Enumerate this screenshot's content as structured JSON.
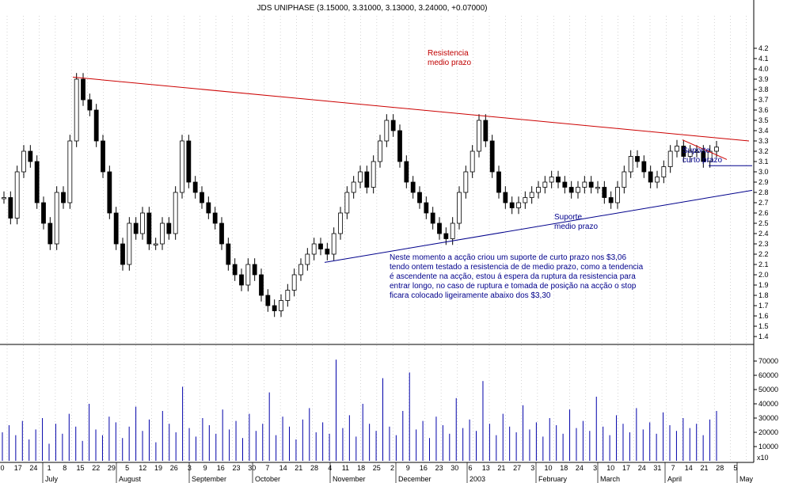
{
  "chart_data": [
    {
      "type": "candlestick",
      "title": "JDS UNIPHASE (3.15000, 3.31000, 3.13000, 3.24000, +0.07000)",
      "yticks": [
        "1.4",
        "1.5",
        "1.6",
        "1.7",
        "1.8",
        "1.9",
        "2.0",
        "2.1",
        "2.2",
        "2.3",
        "2.4",
        "2.5",
        "2.6",
        "2.7",
        "2.8",
        "2.9",
        "3.0",
        "3.1",
        "3.2",
        "3.3",
        "3.4",
        "3.5",
        "3.6",
        "3.7",
        "3.8",
        "3.9",
        "4.0",
        "4.1",
        "4.2"
      ],
      "ylim": [
        1.35,
        4.25
      ],
      "grid": "vertical dotted",
      "approx_closes": [
        2.75,
        2.55,
        3.0,
        3.2,
        3.1,
        2.7,
        2.5,
        2.3,
        2.8,
        2.7,
        3.3,
        3.9,
        3.7,
        3.6,
        3.3,
        3.0,
        2.6,
        2.3,
        2.1,
        2.5,
        2.4,
        2.6,
        2.3,
        2.3,
        2.5,
        2.4,
        2.8,
        3.3,
        2.9,
        2.8,
        2.7,
        2.6,
        2.5,
        2.3,
        2.1,
        2.0,
        1.9,
        2.1,
        2.0,
        1.8,
        1.7,
        1.65,
        1.75,
        1.85,
        2.0,
        2.1,
        2.2,
        2.3,
        2.25,
        2.2,
        2.4,
        2.6,
        2.8,
        2.9,
        3.0,
        2.85,
        3.1,
        3.3,
        3.5,
        3.4,
        3.1,
        2.9,
        2.8,
        2.7,
        2.6,
        2.5,
        2.4,
        2.35,
        2.5,
        2.8,
        3.0,
        3.2,
        3.5,
        3.3,
        3.0,
        2.8,
        2.7,
        2.65,
        2.7,
        2.75,
        2.8,
        2.85,
        2.9,
        2.95,
        2.9,
        2.85,
        2.8,
        2.85,
        2.9,
        2.85,
        2.85,
        2.75,
        2.7,
        2.85,
        3.0,
        3.15,
        3.1,
        3.0,
        2.9,
        2.95,
        3.05,
        3.2,
        3.25,
        3.15,
        3.2,
        3.2,
        3.1,
        3.2,
        3.24
      ],
      "annotations": [
        {
          "text_lines": [
            "Resistencia",
            "medio prazo"
          ],
          "color": "#c00000",
          "line": {
            "x": [
              2003.05,
              2004.1
            ],
            "y": [
              3.92,
              3.3
            ]
          }
        },
        {
          "text_lines": [
            "Suporte",
            "medio prazo"
          ],
          "color": "#00008b",
          "line": {
            "x": [
              2003.35,
              2004.1
            ],
            "y": [
              2.12,
              2.82
            ]
          }
        },
        {
          "text_lines": [
            "Suporte",
            "curto prazo"
          ],
          "color": "#00008b",
          "level": 3.06
        },
        {
          "text_lines": [
            "Neste momento a acção criou um suporte de curto prazo nos $3,06",
            "tendo ontem testado a resistencia de de medio prazo, como a tendencia",
            "é ascendente na acção, estou á espera da ruptura da resistencia para",
            "entrar longo, no caso de ruptura e tomada de posição na acção o stop",
            "ficara colocado ligeiramente abaixo dos $3,30"
          ],
          "color": "#00008b"
        }
      ]
    },
    {
      "type": "bar",
      "name": "volume",
      "yticks": [
        "10000",
        "20000",
        "30000",
        "40000",
        "50000",
        "60000",
        "70000"
      ],
      "unit_label": "x10",
      "ylim": [
        0,
        75000
      ],
      "approx_values": [
        20000,
        25000,
        18000,
        28000,
        15000,
        22000,
        30000,
        12000,
        26000,
        19000,
        33000,
        24000,
        14000,
        40000,
        22000,
        18000,
        31000,
        27000,
        16000,
        24000,
        38000,
        21000,
        29000,
        13000,
        35000,
        26000,
        20000,
        52000,
        23000,
        17000,
        30000,
        25000,
        19000,
        36000,
        22000,
        28000,
        16000,
        33000,
        21000,
        26000,
        48000,
        18000,
        31000,
        24000,
        15000,
        29000,
        37000,
        20000,
        27000,
        19000,
        71000,
        23000,
        32000,
        17000,
        40000,
        26000,
        21000,
        58000,
        24000,
        18000,
        35000,
        62000,
        22000,
        28000,
        16000,
        31000,
        25000,
        19000,
        44000,
        23000,
        29000,
        21000,
        56000,
        26000,
        18000,
        33000,
        24000,
        20000,
        39000,
        22000,
        27000,
        17000,
        30000,
        25000,
        19000,
        36000,
        23000,
        28000,
        21000,
        45000,
        24000,
        18000,
        32000,
        26000,
        20000,
        37000,
        22000,
        27000,
        19000,
        34000,
        25000,
        21000,
        30000,
        23000,
        26000,
        18000,
        29000,
        35000
      ]
    }
  ],
  "x_axis": {
    "day_labels": [
      "0",
      "17",
      "24",
      "1",
      "8",
      "15",
      "22",
      "29",
      "5",
      "12",
      "19",
      "26",
      "3",
      "9",
      "16",
      "23",
      "30",
      "7",
      "14",
      "21",
      "28",
      "4",
      "11",
      "18",
      "25",
      "2",
      "9",
      "16",
      "23",
      "30",
      "6",
      "13",
      "21",
      "27",
      "3",
      "10",
      "18",
      "24",
      "3",
      "10",
      "17",
      "24",
      "31",
      "7",
      "14",
      "21",
      "28",
      "5"
    ],
    "month_labels": [
      "July",
      "August",
      "September",
      "October",
      "November",
      "December",
      "2003",
      "February",
      "March",
      "April",
      "May"
    ]
  }
}
